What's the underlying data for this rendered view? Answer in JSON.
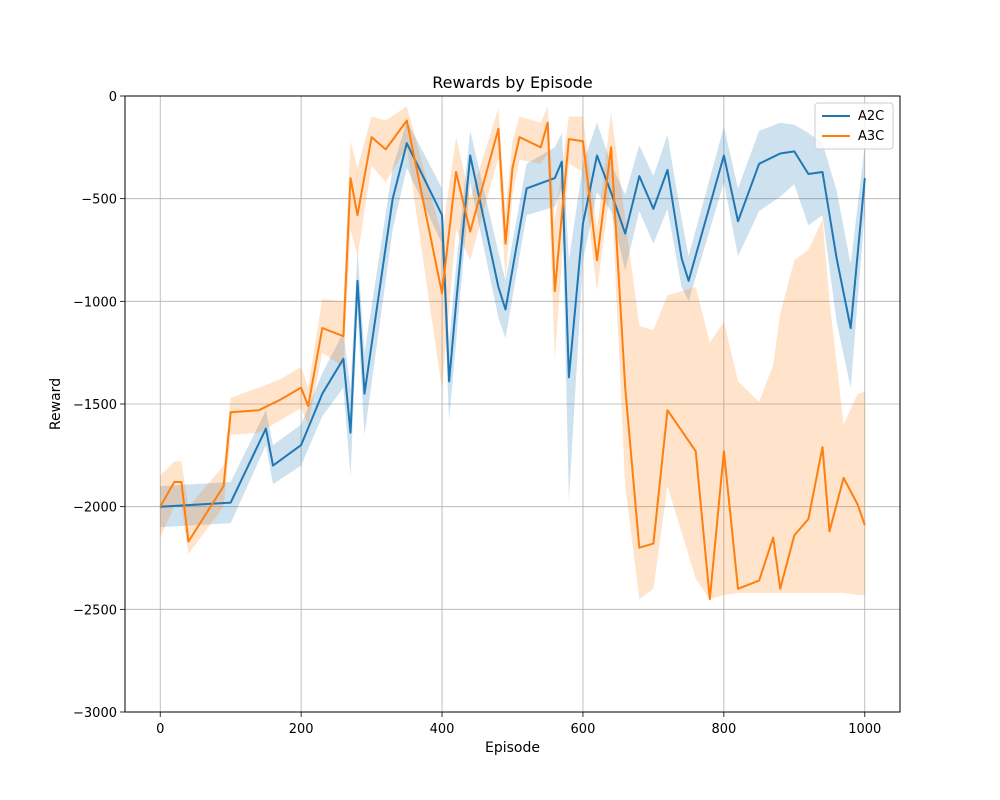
{
  "chart_data": {
    "type": "line",
    "title": "Rewards by Episode",
    "xlabel": "Episode",
    "ylabel": "Reward",
    "xlim": [
      -50,
      1050
    ],
    "ylim": [
      -3000,
      0
    ],
    "xticks": [
      0,
      200,
      400,
      600,
      800,
      1000
    ],
    "xtick_labels": [
      "0",
      "200",
      "400",
      "600",
      "800",
      "1000"
    ],
    "yticks": [
      0,
      -500,
      -1000,
      -1500,
      -2000,
      -2500,
      -3000
    ],
    "ytick_labels": [
      "0",
      "−500",
      "−1000",
      "−1500",
      "−2000",
      "−2500",
      "−3000"
    ],
    "grid": true,
    "legend_position": "top-right",
    "series": [
      {
        "name": "A2C",
        "color": "#1f77b4",
        "x": [
          0,
          100,
          150,
          160,
          200,
          230,
          260,
          270,
          280,
          290,
          330,
          350,
          400,
          410,
          420,
          440,
          480,
          490,
          520,
          560,
          570,
          580,
          600,
          620,
          640,
          660,
          680,
          700,
          720,
          740,
          750,
          800,
          820,
          850,
          880,
          900,
          920,
          940,
          960,
          980,
          1000
        ],
        "y": [
          -2000,
          -1980,
          -1620,
          -1800,
          -1700,
          -1450,
          -1280,
          -1640,
          -900,
          -1450,
          -500,
          -230,
          -580,
          -1390,
          -1010,
          -290,
          -930,
          -1040,
          -450,
          -400,
          -320,
          -1370,
          -620,
          -290,
          -470,
          -670,
          -390,
          -550,
          -360,
          -790,
          -900,
          -290,
          -610,
          -330,
          -280,
          -270,
          -380,
          -370,
          -790,
          -1130,
          -400
        ],
        "band_lower": [
          -2100,
          -2080,
          -1700,
          -1890,
          -1800,
          -1560,
          -1420,
          -1850,
          -1050,
          -1650,
          -650,
          -350,
          -720,
          -1580,
          -1200,
          -420,
          -1080,
          -1180,
          -580,
          -540,
          -450,
          -1970,
          -800,
          -470,
          -560,
          -850,
          -560,
          -720,
          -550,
          -930,
          -1000,
          -420,
          -780,
          -560,
          -490,
          -430,
          -630,
          -580,
          -1100,
          -1420,
          -560
        ],
        "band_upper": [
          -1900,
          -1880,
          -1530,
          -1700,
          -1600,
          -1350,
          -1150,
          -1430,
          -750,
          -1250,
          -350,
          -120,
          -450,
          -1200,
          -830,
          -170,
          -760,
          -900,
          -330,
          -250,
          -180,
          -800,
          -330,
          -130,
          -330,
          -480,
          -240,
          -390,
          -190,
          -600,
          -780,
          -150,
          -450,
          -170,
          -130,
          -140,
          -180,
          -230,
          -460,
          -820,
          -240
        ]
      },
      {
        "name": "A3C",
        "color": "#ff7f0e",
        "x": [
          0,
          20,
          30,
          40,
          90,
          100,
          140,
          170,
          200,
          210,
          230,
          260,
          270,
          280,
          300,
          320,
          350,
          400,
          420,
          440,
          480,
          490,
          500,
          510,
          540,
          550,
          560,
          580,
          600,
          620,
          640,
          660,
          680,
          700,
          720,
          760,
          780,
          800,
          820,
          850,
          870,
          880,
          900,
          920,
          940,
          950,
          970,
          990,
          1000
        ],
        "y": [
          -2000,
          -1880,
          -1880,
          -2170,
          -1900,
          -1540,
          -1530,
          -1480,
          -1420,
          -1510,
          -1130,
          -1170,
          -400,
          -580,
          -200,
          -260,
          -120,
          -960,
          -370,
          -660,
          -160,
          -720,
          -350,
          -200,
          -250,
          -130,
          -950,
          -210,
          -220,
          -800,
          -250,
          -1420,
          -2200,
          -2180,
          -1530,
          -1730,
          -2450,
          -1730,
          -2400,
          -2360,
          -2150,
          -2400,
          -2140,
          -2060,
          -1710,
          -2120,
          -1860,
          -1990,
          -2090
        ],
        "band_lower": [
          -2150,
          -2000,
          -2000,
          -2230,
          -2000,
          -1650,
          -1640,
          -1580,
          -1520,
          -1600,
          -1250,
          -1320,
          -650,
          -780,
          -340,
          -420,
          -250,
          -1430,
          -650,
          -800,
          -300,
          -900,
          -480,
          -310,
          -330,
          -280,
          -1280,
          -330,
          -370,
          -950,
          -420,
          -1900,
          -2450,
          -2400,
          -1900,
          -2350,
          -2450,
          -2430,
          -2420,
          -2420,
          -2420,
          -2420,
          -2420,
          -2420,
          -2420,
          -2420,
          -2420,
          -2430,
          -2430
        ],
        "band_upper": [
          -1850,
          -1780,
          -1780,
          -2000,
          -1800,
          -1470,
          -1420,
          -1380,
          -1320,
          -1420,
          -990,
          -1000,
          -220,
          -350,
          -100,
          -120,
          -50,
          -680,
          -200,
          -500,
          -60,
          -560,
          -220,
          -100,
          -130,
          -50,
          -610,
          -100,
          -100,
          -650,
          -80,
          -600,
          -1120,
          -1140,
          -970,
          -930,
          -1200,
          -1100,
          -1390,
          -1490,
          -1310,
          -1060,
          -800,
          -750,
          -600,
          -1000,
          -1600,
          -1450,
          -1440
        ]
      }
    ]
  }
}
